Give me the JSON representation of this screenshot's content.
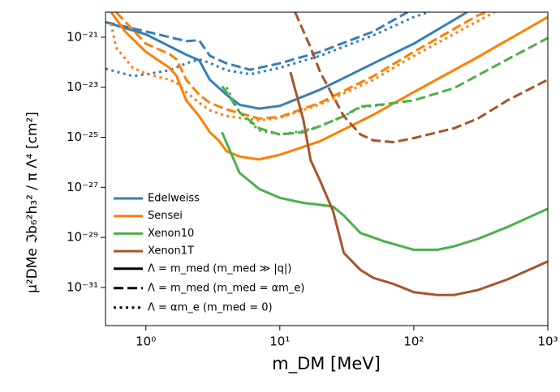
{
  "chart_data": {
    "type": "line",
    "x_label": "m_DM [MeV]",
    "y_label": "μ²DMe ℑb₆²h₃² / π Λ⁴   [cm²]",
    "xlog": true,
    "ylog": true,
    "xlim": [
      0.5,
      1000
    ],
    "ylim": [
      3e-33,
      1e-20
    ],
    "xticks": [
      {
        "value": 1,
        "label": "10⁰"
      },
      {
        "value": 10,
        "label": "10¹"
      },
      {
        "value": 100,
        "label": "10²"
      },
      {
        "value": 1000,
        "label": "10³"
      }
    ],
    "yticks": [
      {
        "value": 1e-21,
        "label": "10⁻²¹"
      },
      {
        "value": 1e-23,
        "label": "10⁻²³"
      },
      {
        "value": 1e-25,
        "label": "10⁻²⁵"
      },
      {
        "value": 1e-27,
        "label": "10⁻²⁷"
      },
      {
        "value": 1e-29,
        "label": "10⁻²⁹"
      },
      {
        "value": 1e-31,
        "label": "10⁻³¹"
      }
    ],
    "legend": "lower left",
    "styles": [
      {
        "style": "solid",
        "label": "Λ = m_med (m_med ≫ |q|)"
      },
      {
        "style": "dashed",
        "label": "Λ = m_med (m_med = αm_e)"
      },
      {
        "style": "dotted",
        "label": "Λ = αm_e   (m_med = 0)"
      }
    ],
    "series": [
      {
        "name": "Edelweiss",
        "color": "#377eb8",
        "lines": [
          {
            "style": "solid",
            "x": [
              0.5,
              1,
              2,
              2.5,
              3,
              4,
              5,
              7,
              10,
              20,
              50,
              100,
              250
            ],
            "values": [
              4e-21,
              1.3e-21,
              2e-22,
              1.2e-22,
              2e-23,
              5e-24,
              2e-24,
              1.4e-24,
              1.8e-24,
              8e-24,
              9e-23,
              5.5e-22,
              1e-20
            ]
          },
          {
            "style": "dashed",
            "x": [
              0.5,
              1,
              1.5,
              2,
              2.5,
              3,
              4,
              6,
              10,
              20,
              50,
              90
            ],
            "values": [
              4e-21,
              1.7e-21,
              1e-21,
              7e-22,
              7.5e-22,
              1.8e-22,
              9e-23,
              5e-23,
              9e-23,
              2.6e-22,
              1.7e-21,
              1e-20
            ]
          },
          {
            "style": "dotted",
            "x": [
              0.5,
              0.8,
              1,
              1.5,
              2,
              2.5,
              3,
              4,
              6,
              10,
              20,
              50,
              100,
              130
            ],
            "values": [
              5.5e-23,
              2.8e-23,
              3.3e-23,
              4.8e-23,
              9e-23,
              1.3e-22,
              9.3e-23,
              4.8e-23,
              3.3e-23,
              6e-23,
              1.8e-22,
              1.2e-21,
              6.4e-21,
              1e-20
            ]
          }
        ]
      },
      {
        "name": "Sensei",
        "color": "#ff7f00",
        "lines": [
          {
            "style": "solid",
            "x": [
              0.55,
              0.7,
              1,
              1.5,
              1.7,
              2,
              2.5,
              3,
              3.5,
              4,
              5,
              7,
              10,
              20,
              50,
              100,
              300,
              1000
            ],
            "values": [
              1e-20,
              1.7e-21,
              2.6e-22,
              6e-23,
              2.8e-23,
              3e-24,
              7e-25,
              1.6e-25,
              7.5e-26,
              2.8e-26,
              1.7e-26,
              1.3e-26,
              2e-26,
              7e-26,
              8e-25,
              6.4e-24,
              1.6e-22,
              6.4e-21
            ]
          },
          {
            "style": "dashed",
            "x": [
              0.6,
              1,
              1.5,
              1.7,
              2,
              2.5,
              3,
              4,
              7,
              10,
              20,
              50,
              100,
              300,
              350
            ],
            "values": [
              1e-20,
              5.5e-22,
              2.1e-22,
              1.3e-22,
              2e-23,
              5e-24,
              2.4e-24,
              1.3e-24,
              5.6e-25,
              6.5e-25,
              2.4e-24,
              2.8e-23,
              2.6e-22,
              7.4e-21,
              1e-20
            ]
          },
          {
            "style": "dotted",
            "x": [
              0.55,
              0.6,
              0.8,
              1,
              1.5,
              1.7,
              2,
              2.5,
              3,
              4,
              7,
              10,
              20,
              50,
              100,
              300,
              400
            ],
            "values": [
              3.5e-21,
              3.8e-22,
              6e-23,
              3.5e-23,
              2e-23,
              1.5e-23,
              6.4e-24,
              2.4e-24,
              1.2e-24,
              7e-25,
              4.8e-25,
              6e-25,
              2.1e-24,
              2e-23,
              1.8e-22,
              4.4e-21,
              1e-20
            ]
          }
        ]
      },
      {
        "name": "Xenon10",
        "color": "#4daf4a",
        "lines": [
          {
            "style": "solid",
            "x": [
              3.7,
              5,
              7,
              10,
              15,
              20,
              25,
              30,
              40,
              60,
              100,
              150,
              200,
              300,
              500,
              1000
            ],
            "values": [
              1.6e-25,
              3.8e-27,
              8.7e-28,
              3.8e-28,
              2.4e-28,
              2e-28,
              1.7e-28,
              7.5e-29,
              1.5e-29,
              7e-30,
              3.2e-30,
              3.2e-30,
              4.4e-30,
              8.7e-30,
              2.6e-29,
              1.4e-28
            ]
          },
          {
            "style": "dashed",
            "x": [
              3.7,
              4,
              5,
              7,
              10,
              15,
              20,
              30,
              40,
              60,
              100,
              200,
              500,
              1000
            ],
            "values": [
              1.1e-23,
              6.4e-24,
              1e-24,
              2.3e-25,
              1.3e-25,
              1.6e-25,
              2.8e-25,
              7e-25,
              1.7e-24,
              2.1e-24,
              3e-24,
              9.3e-24,
              1.3e-22,
              9.3e-22
            ]
          },
          {
            "style": "dotted",
            "x": [
              4,
              5,
              7,
              10,
              15,
              20,
              30,
              40,
              60
            ],
            "values": [
              1e-23,
              1e-24,
              1.9e-25,
              1.3e-25,
              1.8e-25,
              2.8e-25,
              7e-25,
              1.6e-24,
              2e-24
            ]
          }
        ]
      },
      {
        "name": "Xenon1T",
        "color": "#a65628",
        "lines": [
          {
            "style": "solid",
            "x": [
              12,
              15,
              17,
              20,
              25,
              30,
              40,
              50,
              70,
              100,
              150,
              200,
              300,
              500,
              1000
            ],
            "values": [
              4e-23,
              4.8e-25,
              1.2e-26,
              1.8e-27,
              1.1e-28,
              2.4e-30,
              5e-31,
              2.4e-31,
              1.4e-31,
              6.5e-32,
              5e-32,
              5e-32,
              7.9e-32,
              2.1e-31,
              1.1e-30
            ]
          },
          {
            "style": "dashed",
            "x": [
              13,
              17,
              20,
              30,
              40,
              50,
              70,
              100,
              200,
              300,
              500,
              1000
            ],
            "values": [
              1e-20,
              3.8e-22,
              4e-23,
              7e-25,
              1.3e-25,
              7.5e-26,
              6.4e-26,
              9.3e-26,
              2.3e-25,
              5.6e-25,
              3e-24,
              2e-23
            ]
          }
        ]
      }
    ]
  }
}
